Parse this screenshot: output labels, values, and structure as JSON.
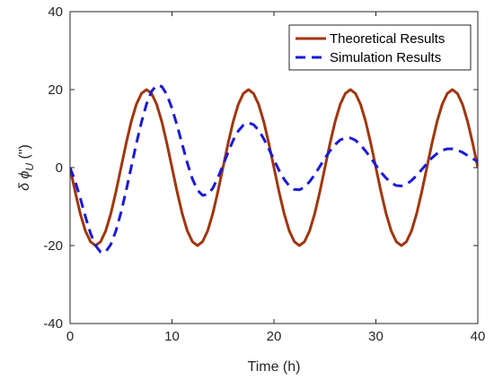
{
  "chart_data": {
    "type": "line",
    "title": "",
    "xlabel": "Time (h)",
    "ylabel": "δ ϕ_U (\")",
    "ylabel_parts": {
      "prefix": "δ ϕ",
      "subscript": "U",
      "unit": " (\")"
    },
    "xlim": [
      0,
      40
    ],
    "ylim": [
      -40,
      40
    ],
    "xticks": [
      0,
      10,
      20,
      30,
      40
    ],
    "yticks": [
      -40,
      -20,
      0,
      20,
      40
    ],
    "grid": false,
    "legend_position": "top-right",
    "series": [
      {
        "name": "Theoretical Results",
        "color": "#a0360e",
        "style": "solid",
        "x": [
          0,
          0.5,
          1,
          1.5,
          2,
          2.5,
          3,
          3.5,
          4,
          4.5,
          5,
          5.5,
          6,
          6.5,
          7,
          7.5,
          8,
          8.5,
          9,
          9.5,
          10,
          10.5,
          11,
          11.5,
          12,
          12.5,
          13,
          13.5,
          14,
          14.5,
          15,
          15.5,
          16,
          16.5,
          17,
          17.5,
          18,
          18.5,
          19,
          19.5,
          20,
          20.5,
          21,
          21.5,
          22,
          22.5,
          23,
          23.5,
          24,
          24.5,
          25,
          25.5,
          26,
          26.5,
          27,
          27.5,
          28,
          28.5,
          29,
          29.5,
          30,
          30.5,
          31,
          31.5,
          32,
          32.5,
          33,
          33.5,
          34,
          34.5,
          35,
          35.5,
          36,
          36.5,
          37,
          37.5,
          38,
          38.5,
          39,
          39.5,
          40
        ],
        "y": [
          0,
          -6.2,
          -11.8,
          -16.2,
          -19.0,
          -20.0,
          -19.0,
          -16.2,
          -11.8,
          -6.2,
          0,
          6.2,
          11.8,
          16.2,
          19.0,
          20.0,
          19.0,
          16.2,
          11.8,
          6.2,
          0,
          -6.2,
          -11.8,
          -16.2,
          -19.0,
          -20.0,
          -19.0,
          -16.2,
          -11.8,
          -6.2,
          0,
          6.2,
          11.8,
          16.2,
          19.0,
          20.0,
          19.0,
          16.2,
          11.8,
          6.2,
          0,
          -6.2,
          -11.8,
          -16.2,
          -19.0,
          -20.0,
          -19.0,
          -16.2,
          -11.8,
          -6.2,
          0,
          6.2,
          11.8,
          16.2,
          19.0,
          20.0,
          19.0,
          16.2,
          11.8,
          6.2,
          0,
          -6.2,
          -11.8,
          -16.2,
          -19.0,
          -20.0,
          -19.0,
          -16.2,
          -11.8,
          -6.2,
          0,
          6.2,
          11.8,
          16.2,
          19.0,
          20.0,
          19.0,
          16.2,
          11.8,
          6.2,
          0
        ]
      },
      {
        "name": "Simulation Results",
        "color": "#1a1ad6",
        "style": "dashed",
        "x": [
          0,
          0.5,
          1,
          1.5,
          2,
          2.5,
          3,
          3.5,
          4,
          4.5,
          5,
          5.5,
          6,
          6.5,
          7,
          7.5,
          8,
          8.5,
          9,
          9.5,
          10,
          10.5,
          11,
          11.5,
          12,
          12.5,
          13,
          13.5,
          14,
          14.5,
          15,
          15.5,
          16,
          16.5,
          17,
          17.5,
          18,
          18.5,
          19,
          19.5,
          20,
          20.5,
          21,
          21.5,
          22,
          22.5,
          23,
          23.5,
          24,
          24.5,
          25,
          25.5,
          26,
          26.5,
          27,
          27.5,
          28,
          28.5,
          29,
          29.5,
          30,
          30.5,
          31,
          31.5,
          32,
          32.5,
          33,
          33.5,
          34,
          34.5,
          35,
          35.5,
          36,
          36.5,
          37,
          37.5,
          38,
          38.5,
          39,
          39.5,
          40
        ],
        "y": [
          0,
          -3.5,
          -7.8,
          -12.5,
          -16.8,
          -20.0,
          -21.7,
          -21.6,
          -19.7,
          -16.2,
          -11.5,
          -5.9,
          0.1,
          6.1,
          11.6,
          16.3,
          19.6,
          21.1,
          20.8,
          18.7,
          15.2,
          10.8,
          6.0,
          1.2,
          -2.9,
          -5.8,
          -7.1,
          -6.9,
          -5.3,
          -2.6,
          0.6,
          3.9,
          7.0,
          9.4,
          10.9,
          11.5,
          11.0,
          9.6,
          7.4,
          4.8,
          2.0,
          -0.7,
          -3.0,
          -4.7,
          -5.6,
          -5.7,
          -5.0,
          -3.6,
          -1.8,
          0.3,
          2.4,
          4.3,
          5.9,
          7.1,
          7.6,
          7.6,
          7.0,
          5.8,
          4.2,
          2.5,
          0.6,
          -1.2,
          -2.7,
          -3.9,
          -4.6,
          -4.7,
          -4.3,
          -3.3,
          -2.0,
          -0.5,
          1.0,
          2.5,
          3.6,
          4.4,
          4.8,
          4.8,
          4.5,
          3.9,
          3.1,
          2.3,
          1.5
        ]
      }
    ]
  }
}
